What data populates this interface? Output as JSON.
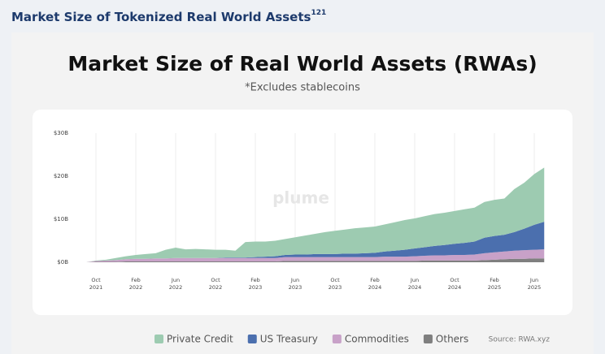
{
  "header": {
    "title": "Market Size of Tokenized Real World Assets",
    "sup": "121"
  },
  "chart_data": {
    "type": "stacked_area",
    "title": "Market Size of Real World Assets (RWAs)",
    "subtitle": "*Excludes stablecoins",
    "watermark": "plume",
    "source": "Source: RWA.xyz",
    "x": [
      "2021-09",
      "2021-10",
      "2021-11",
      "2021-12",
      "2022-01",
      "2022-02",
      "2022-03",
      "2022-04",
      "2022-05",
      "2022-06",
      "2022-07",
      "2022-08",
      "2022-09",
      "2022-10",
      "2022-11",
      "2022-12",
      "2023-01",
      "2023-02",
      "2023-03",
      "2023-04",
      "2023-05",
      "2023-06",
      "2023-07",
      "2023-08",
      "2023-09",
      "2023-10",
      "2023-11",
      "2023-12",
      "2024-01",
      "2024-02",
      "2024-03",
      "2024-04",
      "2024-05",
      "2024-06",
      "2024-07",
      "2024-08",
      "2024-09",
      "2024-10",
      "2024-11",
      "2024-12",
      "2025-01",
      "2025-02",
      "2025-03",
      "2025-04",
      "2025-05",
      "2025-06",
      "2025-07"
    ],
    "series": [
      {
        "name": "Private Credit",
        "color": "#9dcbb1",
        "values": [
          0,
          0.1,
          0.2,
          0.5,
          0.7,
          0.9,
          1.1,
          1.2,
          2.0,
          2.4,
          2.0,
          2.1,
          2.0,
          1.9,
          1.8,
          1.6,
          3.6,
          3.6,
          3.5,
          3.6,
          3.7,
          4.0,
          4.4,
          4.7,
          5.1,
          5.4,
          5.6,
          5.9,
          6.0,
          6.1,
          6.3,
          6.6,
          6.9,
          7.0,
          7.2,
          7.4,
          7.5,
          7.6,
          7.8,
          7.9,
          8.3,
          8.4,
          8.4,
          10.0,
          10.7,
          11.8,
          12.6
        ]
      },
      {
        "name": "US Treasury",
        "color": "#4b6fae",
        "values": [
          0,
          0,
          0,
          0,
          0,
          0,
          0,
          0,
          0,
          0,
          0,
          0,
          0,
          0,
          0.1,
          0.1,
          0.1,
          0.2,
          0.3,
          0.4,
          0.5,
          0.6,
          0.6,
          0.7,
          0.7,
          0.7,
          0.8,
          0.8,
          0.9,
          1.0,
          1.2,
          1.4,
          1.6,
          1.8,
          2.0,
          2.2,
          2.4,
          2.6,
          2.8,
          3.0,
          3.6,
          3.8,
          3.9,
          4.3,
          5.0,
          5.8,
          6.4
        ]
      },
      {
        "name": "Commodities",
        "color": "#c8a1c8",
        "values": [
          0,
          0.2,
          0.3,
          0.4,
          0.5,
          0.6,
          0.6,
          0.7,
          0.7,
          0.8,
          0.8,
          0.8,
          0.8,
          0.8,
          0.8,
          0.8,
          0.8,
          0.8,
          0.8,
          0.8,
          0.9,
          0.9,
          0.9,
          0.9,
          0.9,
          0.9,
          0.9,
          0.9,
          0.9,
          0.9,
          1.0,
          1.0,
          1.0,
          1.1,
          1.1,
          1.2,
          1.2,
          1.3,
          1.3,
          1.4,
          1.6,
          1.7,
          1.8,
          1.9,
          2.0,
          2.0,
          2.1
        ]
      },
      {
        "name": "Others",
        "color": "#7f7f7f",
        "values": [
          0,
          0.1,
          0.1,
          0.1,
          0.2,
          0.2,
          0.2,
          0.2,
          0.2,
          0.2,
          0.2,
          0.2,
          0.2,
          0.2,
          0.2,
          0.2,
          0.2,
          0.2,
          0.2,
          0.2,
          0.3,
          0.3,
          0.3,
          0.3,
          0.3,
          0.3,
          0.3,
          0.3,
          0.3,
          0.3,
          0.3,
          0.3,
          0.3,
          0.3,
          0.4,
          0.4,
          0.4,
          0.4,
          0.4,
          0.4,
          0.5,
          0.6,
          0.7,
          0.8,
          0.8,
          0.9,
          0.9
        ]
      }
    ],
    "ylim": [
      0,
      30
    ],
    "yticks": [
      {
        "value": 0,
        "label": "$0B"
      },
      {
        "value": 10,
        "label": "$10B"
      },
      {
        "value": 20,
        "label": "$20B"
      },
      {
        "value": 30,
        "label": "$30B"
      }
    ],
    "xticks": [
      {
        "value": "2021-10",
        "label": "Oct 2021"
      },
      {
        "value": "2022-02",
        "label": "Feb 2022"
      },
      {
        "value": "2022-06",
        "label": "Jun 2022"
      },
      {
        "value": "2022-10",
        "label": "Oct 2022"
      },
      {
        "value": "2023-02",
        "label": "Feb 2023"
      },
      {
        "value": "2023-06",
        "label": "Jun 2023"
      },
      {
        "value": "2023-10",
        "label": "Oct 2023"
      },
      {
        "value": "2024-02",
        "label": "Feb 2024"
      },
      {
        "value": "2024-06",
        "label": "Jun 2024"
      },
      {
        "value": "2024-10",
        "label": "Oct 2024"
      },
      {
        "value": "2025-02",
        "label": "Feb 2025"
      },
      {
        "value": "2025-06",
        "label": "Jun 2025"
      }
    ],
    "grid": true
  }
}
